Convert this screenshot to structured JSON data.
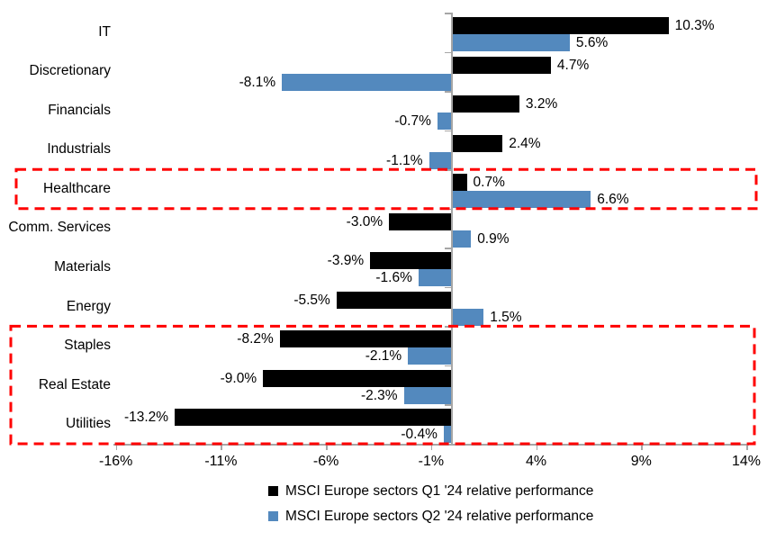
{
  "chart_data": {
    "type": "bar",
    "orientation": "horizontal",
    "title": "",
    "categories": [
      "IT",
      "Discretionary",
      "Financials",
      "Industrials",
      "Healthcare",
      "Comm. Services",
      "Materials",
      "Energy",
      "Staples",
      "Real Estate",
      "Utilities"
    ],
    "series": [
      {
        "name": "MSCI Europe sectors Q1 '24 relative performance",
        "color": "#000000",
        "values": [
          10.3,
          4.7,
          3.2,
          2.4,
          0.7,
          -3.0,
          -3.9,
          -5.5,
          -8.2,
          -9.0,
          -13.2
        ],
        "labels": [
          "10.3%",
          "4.7%",
          "3.2%",
          "2.4%",
          "0.7%",
          "-3.0%",
          "-3.9%",
          "-5.5%",
          "-8.2%",
          "-9.0%",
          "-13.2%"
        ]
      },
      {
        "name": "MSCI Europe sectors Q2 '24 relative performance",
        "color": "#5389BE",
        "values": [
          5.6,
          -8.1,
          -0.7,
          -1.1,
          6.6,
          0.9,
          -1.6,
          1.5,
          -2.1,
          -2.3,
          -0.4
        ],
        "labels": [
          "5.6%",
          "-8.1%",
          "-0.7%",
          "-1.1%",
          "6.6%",
          "0.9%",
          "-1.6%",
          "1.5%",
          "-2.1%",
          "-2.3%",
          "-0.4%"
        ]
      }
    ],
    "x_axis": {
      "min": -16,
      "max": 14,
      "unit": "%",
      "tick_values": [
        -16,
        -11,
        -6,
        -1,
        4,
        9,
        14
      ],
      "tick_labels": [
        "-16%",
        "-11%",
        "-6%",
        "-1%",
        "4%",
        "9%",
        "14%"
      ]
    },
    "grid": false,
    "legend_position": "bottom",
    "axis_color": "#A6A6A6",
    "label_color": "#000000",
    "background_color": "#FFFFFF",
    "highlight_color": "#FF0000",
    "highlights": [
      {
        "name": "healthcare-highlight",
        "categories": [
          "Healthcare"
        ]
      },
      {
        "name": "staples-realestate-utilities-highlight",
        "categories": [
          "Staples",
          "Real Estate",
          "Utilities"
        ]
      }
    ]
  }
}
